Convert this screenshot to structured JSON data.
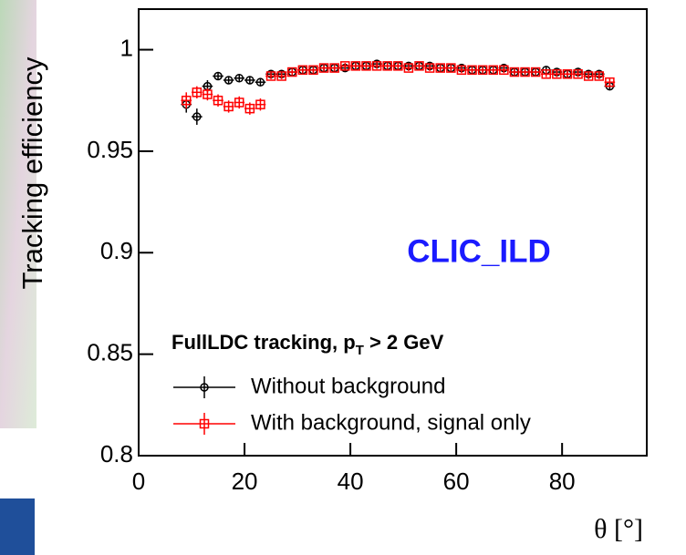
{
  "chart_data": {
    "type": "scatter",
    "ylabel": "Tracking efficiency",
    "xlabel": "θ [°]",
    "annotation": "CLIC_ILD",
    "legend_title": {
      "text": "FullLDC tracking, p",
      "subscript": "T",
      "suffix": " > 2 GeV"
    },
    "xlim": [
      0,
      96
    ],
    "ylim": [
      0.8,
      1.02
    ],
    "xticks": [
      0,
      20,
      40,
      60,
      80
    ],
    "yticks": [
      0.8,
      0.85,
      0.9,
      0.95,
      1
    ],
    "x": [
      9,
      11,
      13,
      15,
      17,
      19,
      21,
      23,
      25,
      27,
      29,
      31,
      33,
      35,
      37,
      39,
      41,
      43,
      45,
      47,
      49,
      51,
      53,
      55,
      57,
      59,
      61,
      63,
      65,
      67,
      69,
      71,
      73,
      75,
      77,
      79,
      81,
      83,
      85,
      87,
      89
    ],
    "series": [
      {
        "name": "Without background",
        "color": "#000000",
        "marker": "circle",
        "values": [
          0.973,
          0.967,
          0.982,
          0.987,
          0.985,
          0.986,
          0.985,
          0.984,
          0.988,
          0.988,
          0.989,
          0.99,
          0.99,
          0.991,
          0.991,
          0.991,
          0.992,
          0.992,
          0.993,
          0.992,
          0.992,
          0.992,
          0.992,
          0.992,
          0.991,
          0.991,
          0.991,
          0.99,
          0.99,
          0.99,
          0.991,
          0.989,
          0.989,
          0.989,
          0.99,
          0.989,
          0.988,
          0.989,
          0.988,
          0.988,
          0.982
        ],
        "errors": [
          0.004,
          0.004,
          0.003,
          0.002,
          0.002,
          0.002,
          0.002,
          0.002,
          0.0015,
          0.0015,
          0.0015,
          0.0015,
          0.0015,
          0.0015,
          0.0015,
          0.0015,
          0.0015,
          0.0015,
          0.0015,
          0.0015,
          0.0015,
          0.0015,
          0.0015,
          0.0015,
          0.0015,
          0.0015,
          0.0015,
          0.0015,
          0.0015,
          0.0015,
          0.0015,
          0.0015,
          0.0015,
          0.0015,
          0.0015,
          0.0015,
          0.0015,
          0.0015,
          0.0015,
          0.0015,
          0.002
        ]
      },
      {
        "name": "With background, signal only",
        "color": "#ff0000",
        "marker": "square",
        "values": [
          0.975,
          0.979,
          0.978,
          0.975,
          0.972,
          0.974,
          0.971,
          0.973,
          0.987,
          0.987,
          0.989,
          0.99,
          0.99,
          0.991,
          0.991,
          0.992,
          0.992,
          0.992,
          0.992,
          0.992,
          0.992,
          0.991,
          0.992,
          0.991,
          0.991,
          0.991,
          0.99,
          0.99,
          0.99,
          0.99,
          0.99,
          0.989,
          0.989,
          0.989,
          0.988,
          0.988,
          0.988,
          0.988,
          0.987,
          0.987,
          0.984
        ],
        "errors": [
          0.004,
          0.003,
          0.003,
          0.003,
          0.003,
          0.003,
          0.003,
          0.003,
          0.0015,
          0.0015,
          0.0015,
          0.0015,
          0.0015,
          0.0015,
          0.0015,
          0.0015,
          0.0015,
          0.0015,
          0.0015,
          0.0015,
          0.0015,
          0.0015,
          0.0015,
          0.0015,
          0.0015,
          0.0015,
          0.0015,
          0.0015,
          0.0015,
          0.0015,
          0.0015,
          0.0015,
          0.0015,
          0.0015,
          0.0015,
          0.0015,
          0.0015,
          0.0015,
          0.0015,
          0.0015,
          0.002
        ]
      }
    ]
  }
}
